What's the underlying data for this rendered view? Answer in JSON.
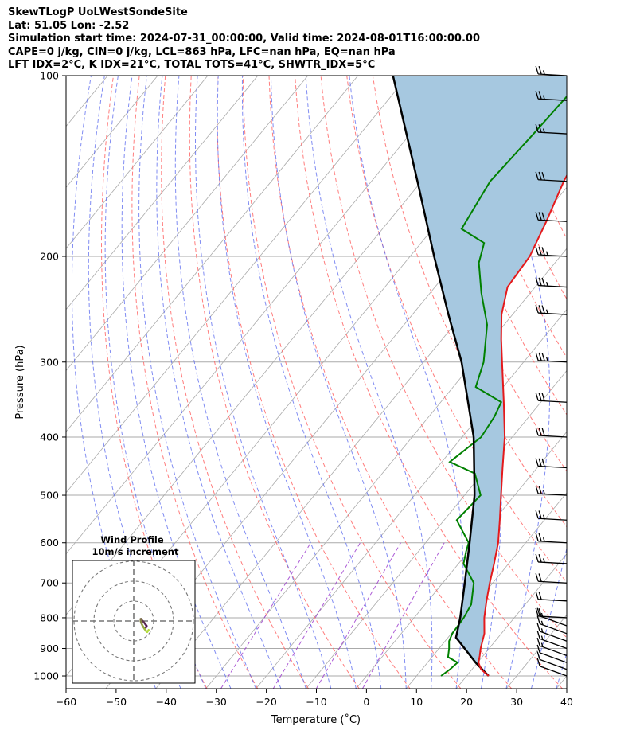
{
  "header": {
    "line1": "SkewTLogP UoLWestSondeSite",
    "line2": "Lat: 51.05   Lon: -2.52",
    "line3": "Simulation start time: 2024-07-31_00:00:00, Valid time: 2024-08-01T16:00:00.00",
    "line4": "CAPE=0 j/kg, CIN=0 j/kg, LCL=863 hPa, LFC=nan hPa, EQ=nan hPa",
    "line5": "LFT IDX=2°C, K IDX=21°C, TOTAL TOTS=41°C, SHWTR_IDX=5°C"
  },
  "colors": {
    "temperature": "#e41a1c",
    "dewpoint": "#008000",
    "parcel": "#000000",
    "cape_fill": "#a6c8e0",
    "dry_adiabat": "#ff6666",
    "moist_adiabat": "#5566ee",
    "mixing_ratio": "#9933cc",
    "isotherm": "#aaaaaa",
    "isobar": "#aaaaaa"
  },
  "chart_data": [
    {
      "type": "skew-t",
      "xlabel": "Temperature (˚C)",
      "ylabel": "Pressure (hPa)",
      "xlim": [
        -60,
        40
      ],
      "ylim": [
        1050,
        100
      ],
      "yscale": "log",
      "xticks": [
        "−60",
        "−50",
        "−40",
        "−30",
        "−20",
        "−10",
        "0",
        "10",
        "20",
        "30",
        "40"
      ],
      "xtick_values": [
        -60,
        -50,
        -40,
        -30,
        -20,
        -10,
        0,
        10,
        20,
        30,
        40
      ],
      "yticks": [
        "100",
        "200",
        "300",
        "400",
        "500",
        "600",
        "700",
        "800",
        "900",
        "1000"
      ],
      "ytick_values": [
        100,
        200,
        300,
        400,
        500,
        600,
        700,
        800,
        900,
        1000
      ],
      "grid": true,
      "series": [
        {
          "role": "temperature",
          "points": [
            [
              1000,
              24.4
            ],
            [
              975,
              21.8
            ],
            [
              950,
              20.2
            ],
            [
              925,
              19.3
            ],
            [
              900,
              18.3
            ],
            [
              850,
              16.6
            ],
            [
              800,
              14.0
            ],
            [
              750,
              11.7
            ],
            [
              700,
              9.4
            ],
            [
              650,
              7.1
            ],
            [
              600,
              4.5
            ],
            [
              550,
              1.1
            ],
            [
              500,
              -2.7
            ],
            [
              450,
              -6.9
            ],
            [
              400,
              -11.5
            ],
            [
              350,
              -17.4
            ],
            [
              300,
              -24.3
            ],
            [
              275,
              -28.2
            ],
            [
              250,
              -32.2
            ],
            [
              225,
              -35.5
            ],
            [
              200,
              -36.1
            ],
            [
              175,
              -38.5
            ],
            [
              150,
              -41.6
            ],
            [
              125,
              -44.3
            ],
            [
              110,
              -46.5
            ],
            [
              100,
              -48.2
            ]
          ]
        },
        {
          "role": "dewpoint",
          "points": [
            [
              1000,
              14.9
            ],
            [
              975,
              15.6
            ],
            [
              950,
              16.0
            ],
            [
              930,
              13.2
            ],
            [
              900,
              12.0
            ],
            [
              875,
              10.8
            ],
            [
              850,
              10.2
            ],
            [
              800,
              9.9
            ],
            [
              760,
              9.2
            ],
            [
              700,
              6.2
            ],
            [
              650,
              1.0
            ],
            [
              620,
              -0.5
            ],
            [
              600,
              -1.4
            ],
            [
              550,
              -7.5
            ],
            [
              500,
              -6.8
            ],
            [
              460,
              -11.5
            ],
            [
              440,
              -18.4
            ],
            [
              400,
              -16.2
            ],
            [
              370,
              -16.9
            ],
            [
              350,
              -17.9
            ],
            [
              330,
              -25.5
            ],
            [
              300,
              -28.0
            ],
            [
              260,
              -33.4
            ],
            [
              230,
              -39.8
            ],
            [
              205,
              -45.2
            ],
            [
              190,
              -47.4
            ],
            [
              180,
              -54.2
            ],
            [
              150,
              -56.3
            ],
            [
              125,
              -55.4
            ],
            [
              100,
              -54.6
            ]
          ]
        },
        {
          "role": "parcel",
          "points": [
            [
              1000,
              24.4
            ],
            [
              950,
              19.6
            ],
            [
              900,
              15.1
            ],
            [
              863,
              11.6
            ],
            [
              800,
              9.2
            ],
            [
              700,
              4.4
            ],
            [
              600,
              -1.2
            ],
            [
              500,
              -8.0
            ],
            [
              400,
              -17.7
            ],
            [
              300,
              -32.4
            ],
            [
              250,
              -42.8
            ],
            [
              200,
              -55.2
            ],
            [
              150,
              -70.8
            ],
            [
              100,
              -93.0
            ]
          ]
        }
      ],
      "wind_barbs": {
        "pressures": [
          1000,
          975,
          950,
          925,
          900,
          875,
          850,
          825,
          800,
          750,
          700,
          650,
          600,
          550,
          500,
          450,
          400,
          350,
          300,
          250,
          225,
          200,
          175,
          150,
          125,
          110,
          100
        ],
        "speed_kt": [
          10,
          10,
          10,
          15,
          15,
          15,
          15,
          15,
          20,
          20,
          20,
          25,
          25,
          25,
          25,
          30,
          30,
          30,
          35,
          35,
          35,
          35,
          30,
          30,
          25,
          25,
          25
        ]
      }
    },
    {
      "type": "hodograph",
      "title": "Wind Profile",
      "subtitle": "10m/s increment",
      "u": [
        6,
        6.5,
        5.8,
        5,
        4,
        3.8,
        3.5,
        3.5,
        3.8,
        4.5,
        5.5,
        6.2,
        6.8,
        7.5
      ],
      "v": [
        -3.5,
        -2.5,
        -1.5,
        -0.5,
        0.5,
        1,
        1,
        0,
        -1,
        -2.5,
        -4,
        -5,
        -5.5,
        -4.5
      ]
    }
  ]
}
